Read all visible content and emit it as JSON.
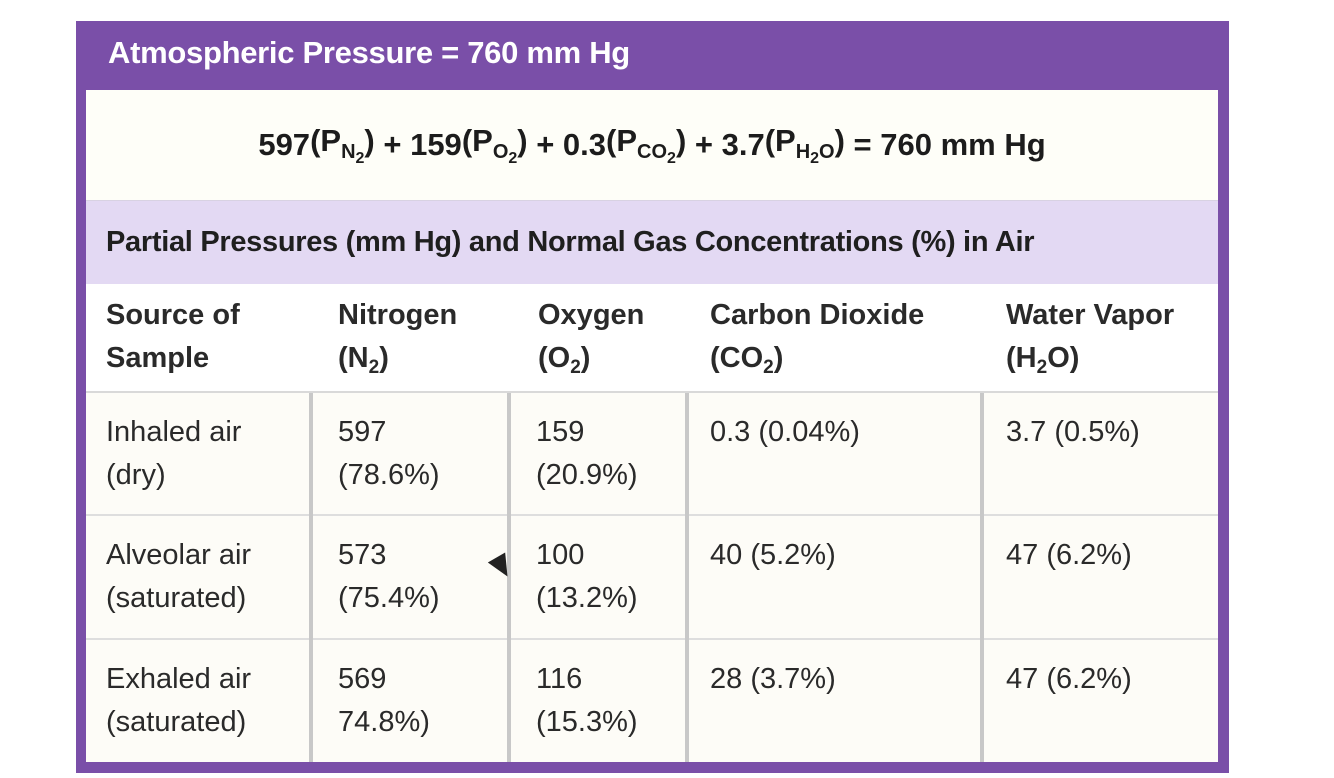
{
  "title": "Atmospheric Pressure = 760 mm Hg",
  "equation": {
    "n2_value": "597",
    "o2_value": "+ 159",
    "co2_value": "+ 0.3",
    "h2o_value": "+ 3.7",
    "result": "= 760 mm Hg"
  },
  "subheader": "Partial Pressures (mm Hg) and Normal Gas Concentrations (%) in Air",
  "columns": {
    "source_line1": "Source of",
    "source_line2": "Sample",
    "nitrogen": "Nitrogen",
    "nitrogen_sym": "(N",
    "oxygen": "Oxygen",
    "oxygen_sym": "(O",
    "co2": "Carbon Dioxide",
    "co2_sym": "(CO",
    "water": "Water Vapor",
    "water_sym": "(H",
    "water_sym_end": "O)"
  },
  "rows": [
    {
      "source_line1": "Inhaled air",
      "source_line2": "(dry)",
      "nitrogen_line1": "597",
      "nitrogen_line2": "(78.6%)",
      "oxygen_line1": "159",
      "oxygen_line2": "(20.9%)",
      "co2": "0.3 (0.04%)",
      "water": "3.7 (0.5%)"
    },
    {
      "source_line1": "Alveolar air",
      "source_line2": "(saturated)",
      "nitrogen_line1": "573",
      "nitrogen_line2": "(75.4%)",
      "oxygen_line1": "100",
      "oxygen_line2": "(13.2%)",
      "co2": "40 (5.2%)",
      "water": "47 (6.2%)"
    },
    {
      "source_line1": "Exhaled air",
      "source_line2": "(saturated)",
      "nitrogen_line1": "569",
      "nitrogen_line2": "74.8%)",
      "oxygen_line1": "116",
      "oxygen_line2": "(15.3%)",
      "co2": "28 (3.7%)",
      "water": "47 (6.2%)"
    }
  ],
  "colors": {
    "frame": "#7a4fa8",
    "subheader_bg": "#e3d9f3"
  }
}
